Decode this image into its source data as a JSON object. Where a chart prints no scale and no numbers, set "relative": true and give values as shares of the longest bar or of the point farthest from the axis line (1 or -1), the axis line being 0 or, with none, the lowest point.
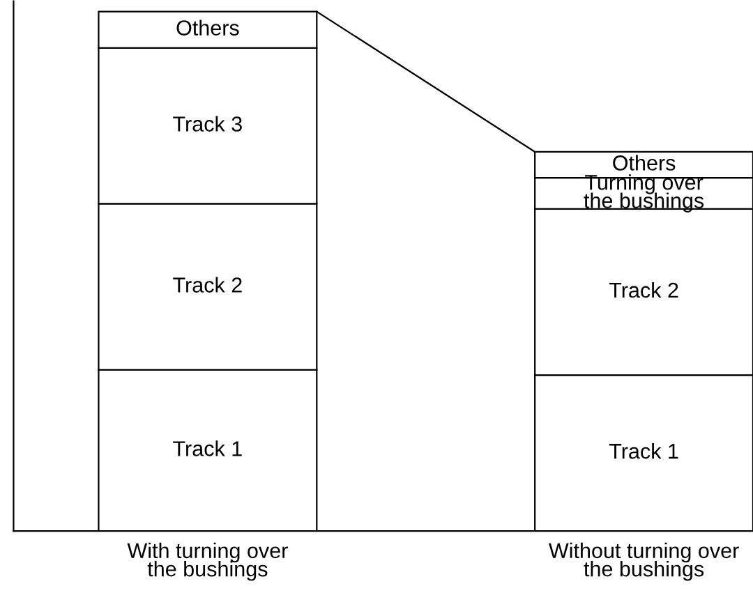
{
  "chart_data": {
    "type": "bar",
    "stacked": true,
    "relative": true,
    "categories": [
      "With turning over\nthe bushings",
      "Without turning over\nthe bushings"
    ],
    "series": [
      {
        "name": "Track 1",
        "color": "#ffffff",
        "values": [
          0.31,
          0.3
        ]
      },
      {
        "name": "Track 2",
        "color": "#ffffff",
        "values": [
          0.32,
          0.32
        ]
      },
      {
        "name": "Track 3",
        "color": "#ffffff",
        "values": [
          0.3,
          null
        ]
      },
      {
        "name": "Turning over\nthe bushings",
        "color": "#ffffff",
        "values": [
          null,
          0.06
        ]
      },
      {
        "name": "Others",
        "color": "#ffffff",
        "values": [
          0.07,
          0.05
        ]
      }
    ]
  }
}
